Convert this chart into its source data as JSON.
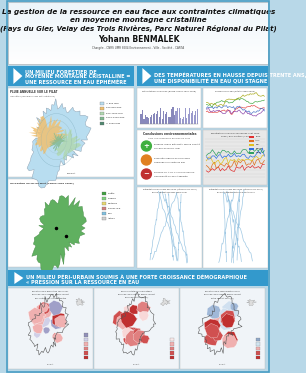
{
  "title_line1": "La gestion de la ressource en eau face aux contraintes climatiques",
  "title_line2": "en moyenne montagne cristalline",
  "title_line3": "(Pays du Gier, Velay des Trois Rivières, Parc Naturel Régional du Pilat)",
  "author": "Yohann BENMALEK",
  "author_sub": "Chargée - CNRS UMR 8504 Environnement - Ville - Société - CARTA",
  "section1_line1": "UN MILIEU FORESTIER DE",
  "section1_line2": "MOYENNE MONTAGNE CRISTALLINE =",
  "section1_line3": "UNE RESSOURCE EN EAU ÉPHÉMÈRE",
  "section2_line1": "DES TEMPÉRATURES EN HAUSSE DEPUIS TRENTE ANS,",
  "section2_line2": "UNE DISPONIBILITÉ EN EAU QUI STAGNE",
  "section3_line1": "UN MILIEU PÉRI-URBAIN SOUMIS À UNE FORTE CROISSANCE DÉMOGRAPHIQUE",
  "section3_line2": "« PRESSION SUR LA RESSOURCE EN EAU",
  "bg_color": "#b8d8e8",
  "header_bg": "#ffffff",
  "section_bar_color": "#3399cc",
  "map1_bg": "#ddeeff",
  "map1_colors": [
    "#f0c080",
    "#b0d0b0",
    "#80c0a0",
    "#60a890",
    "#408070"
  ],
  "map2_bg": "#e0f0e0",
  "map2_colors": [
    "#40a040",
    "#60b860",
    "#80d080",
    "#f8e080",
    "#e0c060",
    "#f0f0f0"
  ],
  "bar_color_pos": "#9090c0",
  "bar_color_neg": "#b0b0d0",
  "line_colors": [
    "#e03030",
    "#8060a0",
    "#4060c0",
    "#40a040",
    "#c0c030"
  ],
  "traffic_green": "#40b040",
  "traffic_orange": "#e08020",
  "traffic_red": "#c03030",
  "choro_colors_1": [
    "#c03030",
    "#d05050",
    "#e08080",
    "#f0b0b0",
    "#d0d0e8",
    "#a0a0c8"
  ],
  "choro_colors_2": [
    "#c03030",
    "#d05050",
    "#e08080",
    "#f0b0b0",
    "#f8d8d8"
  ],
  "choro_colors_3": [
    "#c03030",
    "#d05050",
    "#f0b0b0",
    "#d0e0f0",
    "#a0b8d8"
  ],
  "legend_colors_1": [
    "#c03030",
    "#d05050",
    "#e08080",
    "#f0b0b0",
    "#d0d0e8",
    "#9090b8"
  ],
  "legend_colors_2": [
    "#c03030",
    "#d05050",
    "#e08080",
    "#f0b0b0",
    "#f8e8e8"
  ],
  "legend_colors_3": [
    "#c03030",
    "#d05050",
    "#f0b0b0",
    "#d0e4f0",
    "#90a8c8"
  ],
  "river_color": "#88bbdd",
  "outer_border": "#4a9ec4",
  "grid_color": "#cccccc",
  "white": "#ffffff",
  "text_dark": "#222222",
  "text_mid": "#555555"
}
